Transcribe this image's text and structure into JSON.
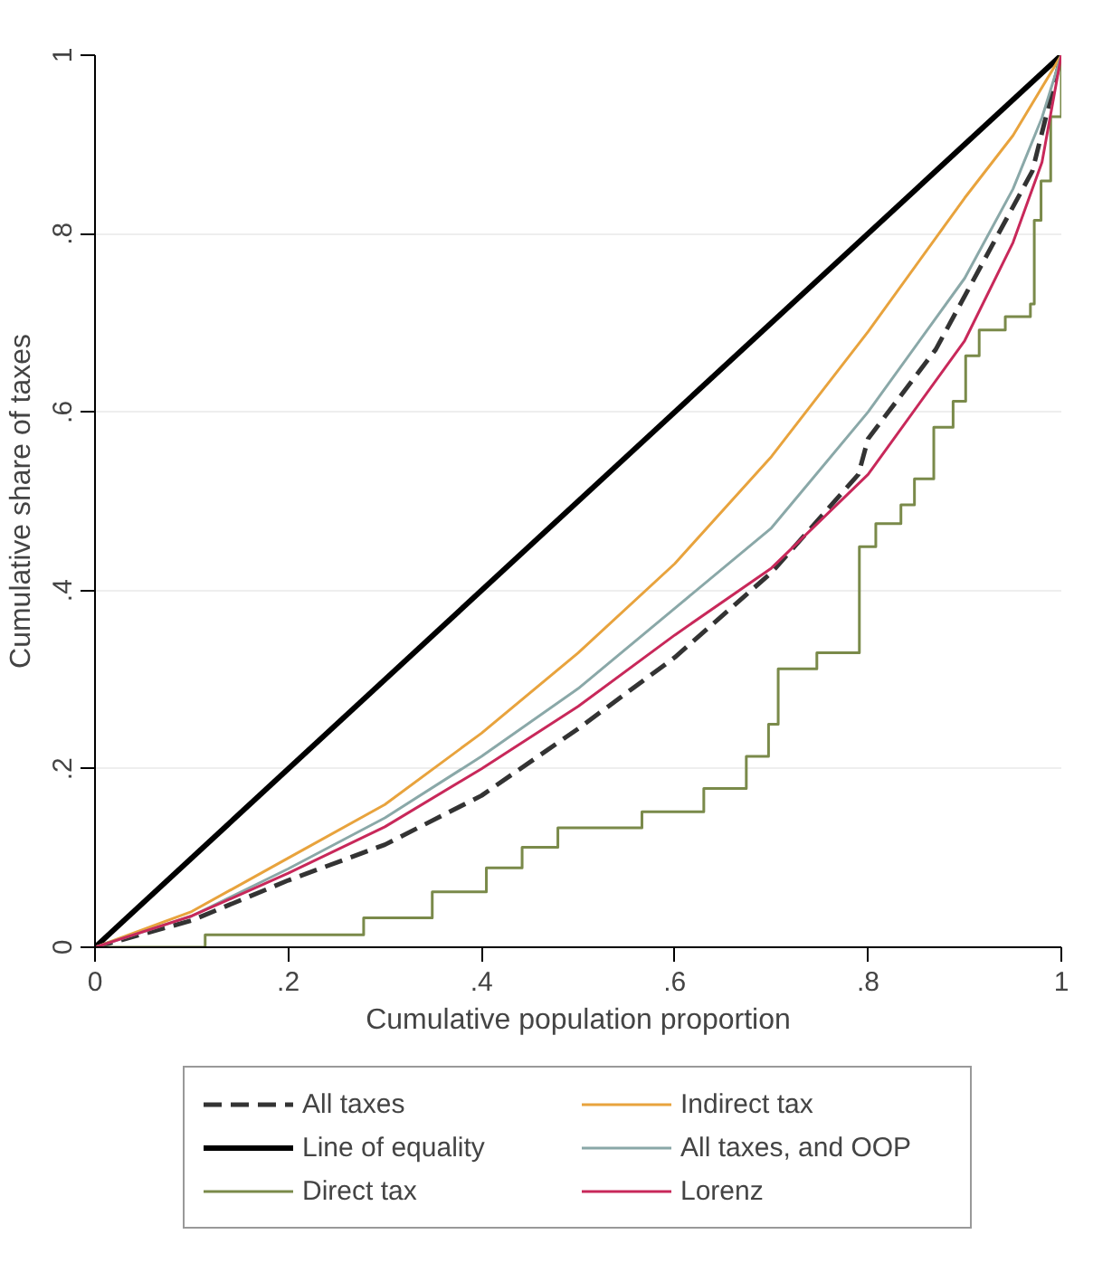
{
  "chart_data": {
    "type": "line",
    "xlabel": "Cumulative population proportion",
    "ylabel": "Cumulative share of taxes",
    "xlim": [
      0,
      1
    ],
    "ylim": [
      0,
      1
    ],
    "xticks": [
      0,
      {
        "value": 0.2,
        "label": ".2"
      },
      {
        "value": 0.4,
        "label": ".4"
      },
      {
        "value": 0.6,
        "label": ".6"
      },
      {
        "value": 0.8,
        "label": ".8"
      },
      1
    ],
    "yticks": [
      0,
      {
        "value": 0.2,
        "label": ".2"
      },
      {
        "value": 0.4,
        "label": ".4"
      },
      {
        "value": 0.6,
        "label": ".6"
      },
      {
        "value": 0.8,
        "label": ".8"
      },
      1
    ],
    "grid": "y",
    "legend": "bottom",
    "series": [
      {
        "name": "All taxes",
        "line_style": "dashed",
        "color": "#333333",
        "x": [
          0,
          0.1,
          0.2,
          0.3,
          0.4,
          0.5,
          0.6,
          0.7,
          0.79,
          0.8,
          0.87,
          0.97,
          1
        ],
        "values": [
          0,
          0.03,
          0.075,
          0.115,
          0.17,
          0.245,
          0.325,
          0.42,
          0.53,
          0.57,
          0.67,
          0.87,
          1
        ]
      },
      {
        "name": "Line of equality",
        "line_style": "solid",
        "color": "#000000",
        "x": [
          0,
          1
        ],
        "values": [
          0,
          1
        ]
      },
      {
        "name": "Direct tax",
        "type": "step",
        "line_style": "solid",
        "color": "#7a8a4a",
        "x": [
          0,
          0.114,
          0.278,
          0.349,
          0.405,
          0.442,
          0.479,
          0.566,
          0.63,
          0.674,
          0.697,
          0.707,
          0.747,
          0.791,
          0.808,
          0.834,
          0.848,
          0.868,
          0.888,
          0.901,
          0.915,
          0.942,
          0.968,
          0.972,
          0.979,
          0.989,
          1
        ],
        "values": [
          0,
          0.014,
          0.033,
          0.062,
          0.089,
          0.112,
          0.134,
          0.152,
          0.178,
          0.214,
          0.25,
          0.312,
          0.33,
          0.449,
          0.475,
          0.496,
          0.525,
          0.583,
          0.612,
          0.663,
          0.692,
          0.707,
          0.721,
          0.815,
          0.859,
          0.931,
          1
        ]
      },
      {
        "name": "Indirect tax",
        "line_style": "solid",
        "color": "#e8a33d",
        "x": [
          0,
          0.1,
          0.2,
          0.3,
          0.4,
          0.5,
          0.6,
          0.7,
          0.8,
          0.9,
          0.95,
          1
        ],
        "values": [
          0,
          0.04,
          0.1,
          0.16,
          0.24,
          0.33,
          0.43,
          0.55,
          0.69,
          0.84,
          0.91,
          1
        ]
      },
      {
        "name": "All taxes, and OOP",
        "line_style": "solid",
        "color": "#8aa8a8",
        "x": [
          0,
          0.1,
          0.2,
          0.3,
          0.4,
          0.5,
          0.6,
          0.7,
          0.8,
          0.9,
          0.95,
          0.98,
          1
        ],
        "values": [
          0,
          0.035,
          0.088,
          0.145,
          0.214,
          0.29,
          0.38,
          0.47,
          0.6,
          0.75,
          0.85,
          0.93,
          1
        ]
      },
      {
        "name": "Lorenz",
        "line_style": "solid",
        "color": "#c8285a",
        "x": [
          0,
          0.1,
          0.2,
          0.3,
          0.4,
          0.5,
          0.6,
          0.7,
          0.8,
          0.9,
          0.95,
          0.98,
          1
        ],
        "values": [
          0,
          0.035,
          0.083,
          0.135,
          0.2,
          0.27,
          0.35,
          0.425,
          0.53,
          0.68,
          0.79,
          0.88,
          1
        ]
      }
    ]
  }
}
